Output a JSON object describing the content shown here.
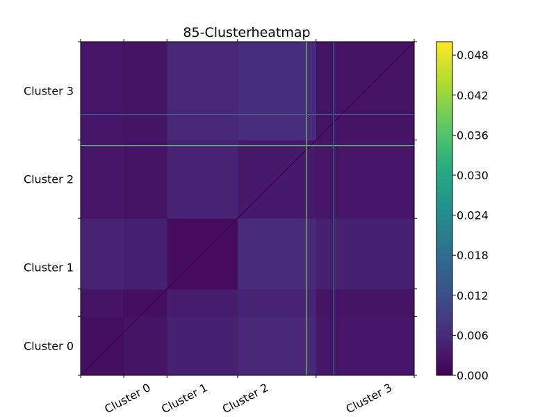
{
  "chart_data": {
    "type": "heatmap",
    "title": "85-Clusterheatmap",
    "xlabel": "",
    "ylabel": "",
    "x_tick_labels": [
      "Cluster 0",
      "Cluster 1",
      "Cluster 2",
      "Cluster 3"
    ],
    "y_tick_labels": [
      "Cluster 0",
      "Cluster 1",
      "Cluster 2",
      "Cluster 3"
    ],
    "colormap": "viridis",
    "colorbar": {
      "range": [
        0.0,
        0.05
      ],
      "ticks": [
        "0.000",
        "0.006",
        "0.012",
        "0.018",
        "0.024",
        "0.030",
        "0.036",
        "0.042",
        "0.048"
      ]
    },
    "x_block_bounds": [
      0,
      11,
      22,
      40,
      60,
      85
    ],
    "y_block_bounds": [
      0,
      15,
      22,
      40,
      60,
      85
    ],
    "block_values": [
      [
        0.002,
        0.0025,
        0.0045,
        0.0055,
        0.003
      ],
      [
        0.0025,
        0.002,
        0.004,
        0.005,
        0.0025
      ],
      [
        0.005,
        0.0045,
        0.0015,
        0.006,
        0.0045
      ],
      [
        0.003,
        0.0025,
        0.005,
        0.0035,
        0.003
      ],
      [
        0.003,
        0.0028,
        0.0055,
        0.0065,
        0.0025
      ]
    ],
    "highlight_lines": [
      {
        "axis": "x",
        "index": 57,
        "value": 0.04
      },
      {
        "axis": "y",
        "index": 58,
        "value": 0.036
      },
      {
        "axis": "x",
        "index": 64,
        "value": 0.02
      },
      {
        "axis": "y",
        "index": 66,
        "value": 0.016
      }
    ],
    "grid": false
  }
}
